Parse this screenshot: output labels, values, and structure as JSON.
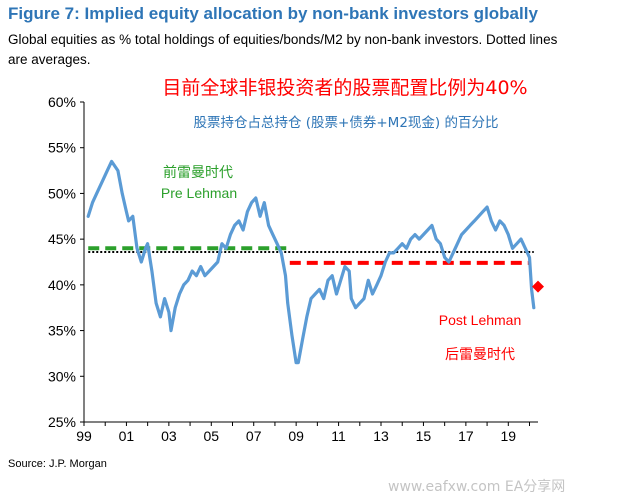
{
  "title": "Figure 7: Implied equity allocation by non-bank investors globally",
  "subtitle": "Global equities as % total holdings of equities/bonds/M2 by non-bank investors. Dotted lines are averages.",
  "source": "Source: J.P. Morgan",
  "watermark": "www.eafxw.com  EA分享网",
  "colors": {
    "title": "#2e75b6",
    "series": "#5b9bd5",
    "pre_avg": "#2ca02c",
    "post_avg": "#ff0000",
    "overall_avg": "#000000",
    "annotation_red": "#ff0000",
    "annotation_blue": "#2e75b6",
    "annotation_green": "#2ca02c"
  },
  "chart_data": {
    "type": "line",
    "xlabel": "",
    "ylabel": "",
    "x_ticks": [
      "99",
      "01",
      "03",
      "05",
      "07",
      "09",
      "11",
      "13",
      "15",
      "17",
      "19"
    ],
    "xlim": [
      1999,
      2020.4
    ],
    "ylim": [
      25,
      60
    ],
    "y_ticks": [
      "25%",
      "30%",
      "35%",
      "40%",
      "45%",
      "50%",
      "55%",
      "60%"
    ],
    "grid": false,
    "annotations": {
      "headline_cn": "目前全球非银投资者的股票配置比例为40%",
      "subhead_cn": "股票持仓占总持仓 (股票+债券+M2现金) 的百分比",
      "pre_label_cn": "前雷曼时代",
      "pre_label_en": "Pre Lehman",
      "post_label_en": "Post Lehman",
      "post_label_cn": "后雷曼时代"
    },
    "series": [
      {
        "x": [
          1999.2,
          1999.4,
          1999.6,
          1999.9,
          2000.1,
          2000.3,
          2000.6,
          2000.8,
          2001.0,
          2001.1,
          2001.3,
          2001.5,
          2001.7,
          2001.9,
          2002.0,
          2002.2,
          2002.4,
          2002.6,
          2002.8,
          2003.0,
          2003.1,
          2003.3,
          2003.5,
          2003.7,
          2003.9,
          2004.1,
          2004.3,
          2004.5,
          2004.7,
          2004.9,
          2005.1,
          2005.3,
          2005.5,
          2005.7,
          2005.9,
          2006.1,
          2006.3,
          2006.5,
          2006.7,
          2006.9,
          2007.1,
          2007.3,
          2007.5,
          2007.7,
          2007.9,
          2008.1,
          2008.3,
          2008.5,
          2008.6,
          2008.8,
          2009.0,
          2009.1,
          2009.3,
          2009.5,
          2009.7,
          2009.9,
          2010.1,
          2010.3,
          2010.5,
          2010.7,
          2010.9,
          2011.1,
          2011.3,
          2011.5,
          2011.6,
          2011.8,
          2012.0,
          2012.2,
          2012.4,
          2012.6,
          2012.8,
          2013.0,
          2013.2,
          2013.4,
          2013.6,
          2013.8,
          2014.0,
          2014.2,
          2014.4,
          2014.6,
          2014.8,
          2015.0,
          2015.2,
          2015.4,
          2015.6,
          2015.8,
          2016.0,
          2016.2,
          2016.4,
          2016.6,
          2016.8,
          2017.0,
          2017.2,
          2017.4,
          2017.6,
          2017.8,
          2018.0,
          2018.2,
          2018.4,
          2018.6,
          2018.8,
          2019.0,
          2019.2,
          2019.4,
          2019.6,
          2019.8,
          2020.0,
          2020.1,
          2020.2
        ],
        "values": [
          47.5,
          49.0,
          50.0,
          51.5,
          52.5,
          53.5,
          52.5,
          50.0,
          48.0,
          47.0,
          47.5,
          44.0,
          42.5,
          44.0,
          44.5,
          41.5,
          38.0,
          36.5,
          38.5,
          37.0,
          35.0,
          37.5,
          39.0,
          40.0,
          40.5,
          41.5,
          41.0,
          42.0,
          41.0,
          41.5,
          42.0,
          42.5,
          44.5,
          44.0,
          45.5,
          46.5,
          47.0,
          46.0,
          48.0,
          49.0,
          49.5,
          47.5,
          49.0,
          46.5,
          45.5,
          44.5,
          43.5,
          41.0,
          38.0,
          34.5,
          31.5,
          31.5,
          34.0,
          36.5,
          38.5,
          39.0,
          39.5,
          38.5,
          40.5,
          41.0,
          39.0,
          40.5,
          42.0,
          41.5,
          38.5,
          37.5,
          38.0,
          38.5,
          40.5,
          39.0,
          40.0,
          41.0,
          42.5,
          43.5,
          43.5,
          44.0,
          44.5,
          44.0,
          45.0,
          45.5,
          45.0,
          45.5,
          46.0,
          46.5,
          45.0,
          44.5,
          43.0,
          42.5,
          43.5,
          44.5,
          45.5,
          46.0,
          46.5,
          47.0,
          47.5,
          48.0,
          48.5,
          47.0,
          46.0,
          47.0,
          46.5,
          45.5,
          44.0,
          44.5,
          45.0,
          44.0,
          43.0,
          39.5,
          37.5
        ]
      }
    ],
    "averages": [
      {
        "label": "overall",
        "value": 43.6,
        "x_range": [
          1999.2,
          2020.2
        ]
      },
      {
        "label": "pre_lehman",
        "value": 44.0,
        "x_range": [
          1999.2,
          2008.7
        ]
      },
      {
        "label": "post_lehman",
        "value": 42.4,
        "x_range": [
          2008.7,
          2020.0
        ]
      }
    ],
    "current_marker": {
      "x": 2020.4,
      "value": 39.8
    }
  }
}
